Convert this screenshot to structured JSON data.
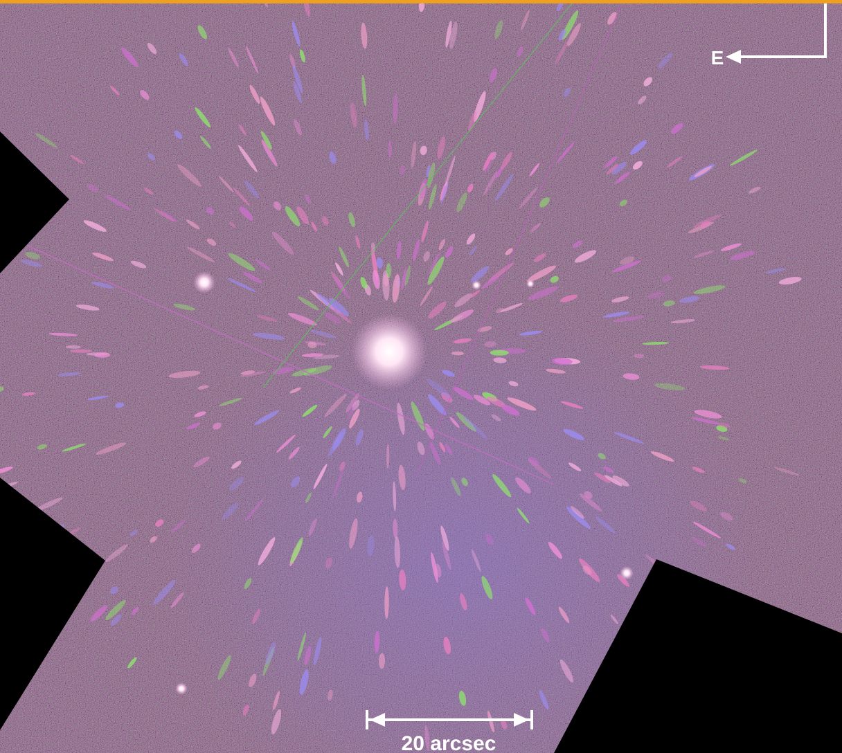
{
  "labels": {
    "compass": "E",
    "scale_bar": "20 arcsec"
  }
}
